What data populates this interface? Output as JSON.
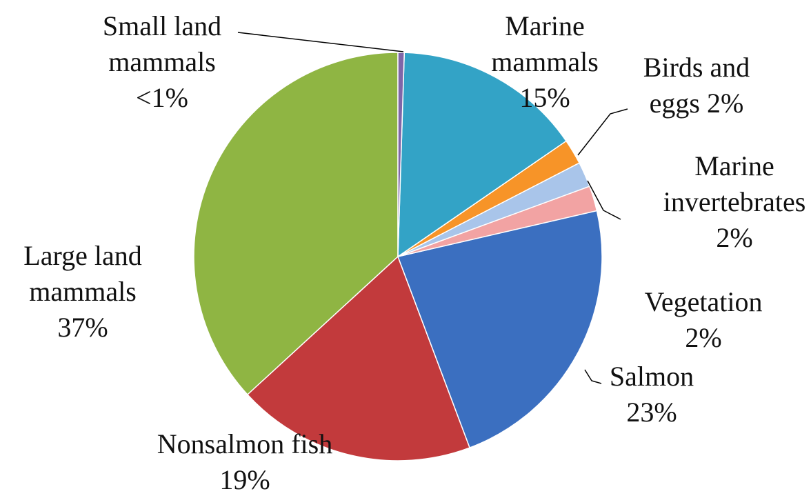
{
  "chart_data": {
    "type": "pie",
    "categories": [
      "Small land mammals",
      "Marine mammals",
      "Birds and eggs",
      "Marine invertebrates",
      "Vegetation",
      "Salmon",
      "Nonsalmon fish",
      "Large land mammals"
    ],
    "values": [
      0.5,
      15,
      2,
      2,
      2,
      23,
      19,
      37
    ],
    "value_labels": [
      "<1%",
      "15%",
      "2%",
      "2%",
      "2%",
      "23%",
      "19%",
      "37%"
    ],
    "colors": [
      "#7f66a8",
      "#33a3c6",
      "#f79428",
      "#a9c5ea",
      "#f2a3a3",
      "#3b6fc0",
      "#c23a3c",
      "#8fb543"
    ]
  }
}
